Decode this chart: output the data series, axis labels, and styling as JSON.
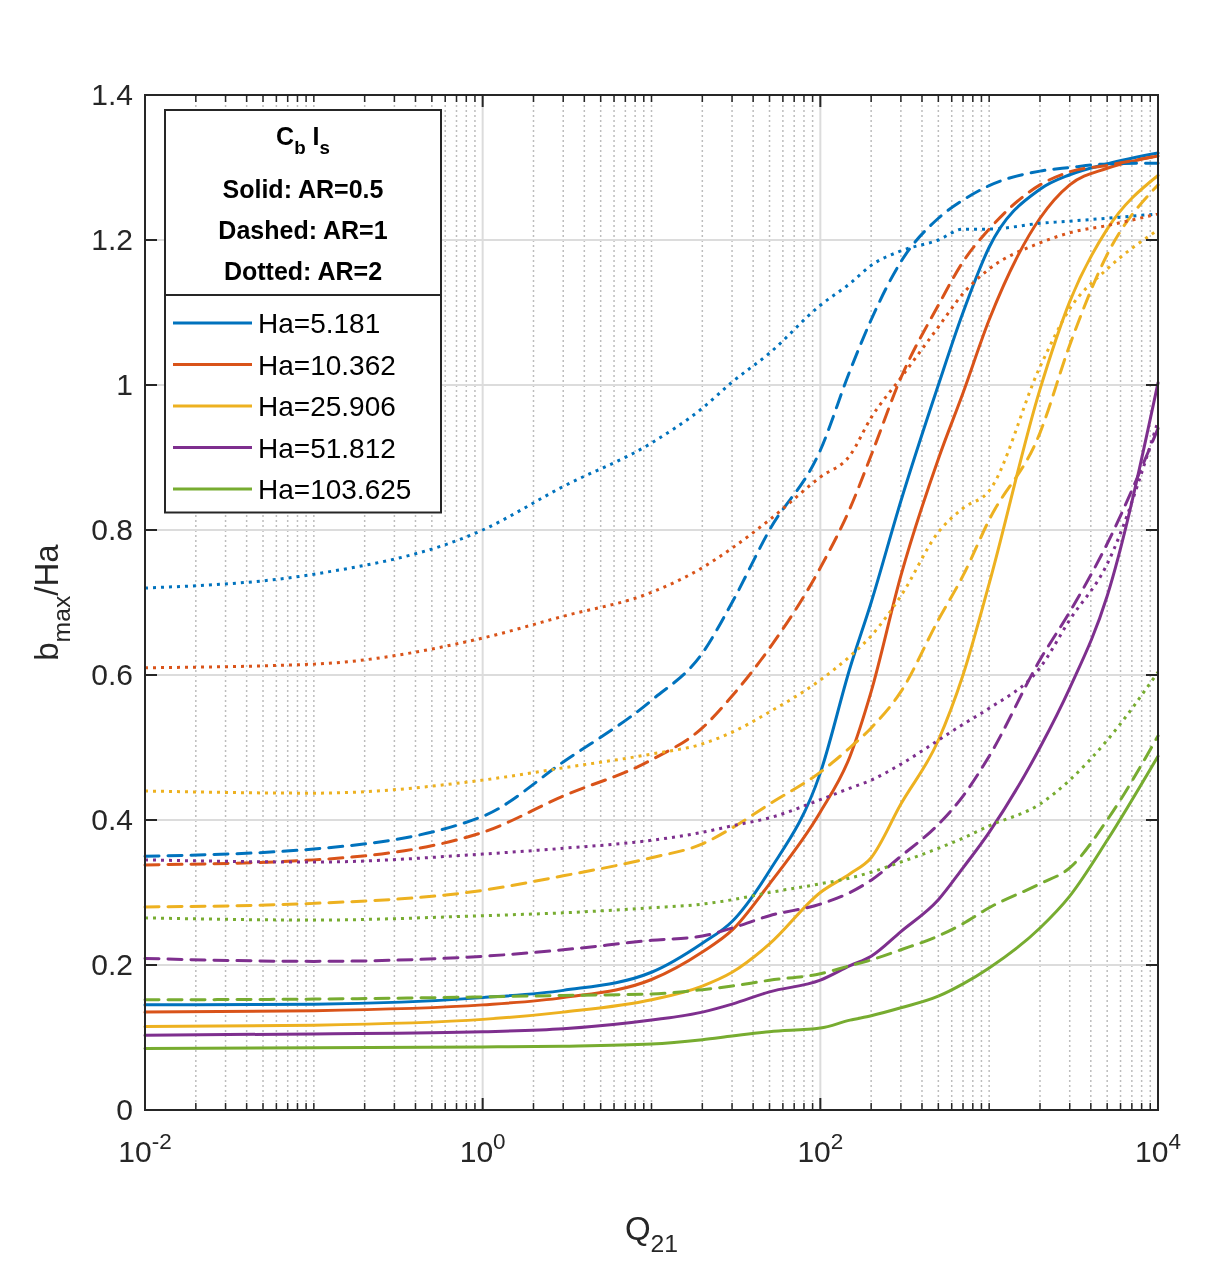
{
  "chart_data": {
    "type": "line",
    "xlabel": "Q$_{21}$",
    "ylabel": "b$_{max}$/Ha",
    "legend_title": "C$_{b}$ I$_{s}$",
    "annotations": [
      "Solid: AR=0.5",
      "Dashed: AR=1",
      "Dotted: AR=2"
    ],
    "log": "x",
    "grid": true,
    "legend": "top left",
    "xlim": [
      0.01,
      10000
    ],
    "xticks": [
      {
        "value": 0.01,
        "label": "10$^{-2}$"
      },
      {
        "value": 1,
        "label": "10$^{0}$"
      },
      {
        "value": 100,
        "label": "10$^{2}$"
      },
      {
        "value": 10000,
        "label": "10$^{4}$"
      }
    ],
    "ylim": [
      0,
      1.4
    ],
    "yticks": [
      0,
      0.2,
      0.4,
      0.6,
      0.8,
      1,
      1.2,
      1.4
    ],
    "x": [
      0.01,
      0.1,
      1,
      3,
      10,
      20,
      30,
      50,
      100,
      150,
      200,
      300,
      500,
      700,
      1000,
      2000,
      3000,
      5000,
      10000
    ],
    "series": [
      {
        "name": "Ha=5.181",
        "color": "#0072bd",
        "line_style": "solid",
        "values": [
          0.145,
          0.146,
          0.155,
          0.165,
          0.19,
          0.23,
          0.26,
          0.33,
          0.465,
          0.61,
          0.7,
          0.84,
          1.0,
          1.1,
          1.19,
          1.27,
          1.29,
          1.305,
          1.32
        ]
      },
      {
        "name": "Ha=10.362",
        "color": "#d95319",
        "line_style": "solid",
        "values": [
          0.135,
          0.137,
          0.145,
          0.155,
          0.18,
          0.218,
          0.248,
          0.312,
          0.411,
          0.488,
          0.577,
          0.737,
          0.898,
          0.989,
          1.09,
          1.23,
          1.276,
          1.299,
          1.316
        ]
      },
      {
        "name": "Ha=25.906",
        "color": "#edb120",
        "line_style": "solid",
        "values": [
          0.115,
          0.117,
          0.125,
          0.135,
          0.152,
          0.171,
          0.19,
          0.229,
          0.3,
          0.326,
          0.348,
          0.422,
          0.51,
          0.6,
          0.726,
          0.994,
          1.115,
          1.215,
          1.289
        ]
      },
      {
        "name": "Ha=51.812",
        "color": "#7e2f8e",
        "line_style": "solid",
        "values": [
          0.103,
          0.105,
          0.108,
          0.112,
          0.124,
          0.135,
          0.146,
          0.163,
          0.179,
          0.199,
          0.212,
          0.246,
          0.29,
          0.334,
          0.383,
          0.5,
          0.582,
          0.709,
          1.003
        ]
      },
      {
        "name": "Ha=103.625",
        "color": "#77ac30",
        "line_style": "solid",
        "values": [
          0.085,
          0.086,
          0.087,
          0.088,
          0.091,
          0.097,
          0.102,
          0.108,
          0.113,
          0.124,
          0.13,
          0.141,
          0.157,
          0.174,
          0.196,
          0.251,
          0.295,
          0.372,
          0.488
        ]
      },
      {
        "color": "#0072bd",
        "line_style": "dashed",
        "values": [
          0.35,
          0.36,
          0.405,
          0.48,
          0.565,
          0.63,
          0.7,
          0.8,
          0.91,
          1.02,
          1.09,
          1.17,
          1.23,
          1.255,
          1.275,
          1.295,
          1.3,
          1.305,
          1.306
        ]
      },
      {
        "color": "#d95319",
        "line_style": "dashed",
        "values": [
          0.338,
          0.345,
          0.383,
          0.433,
          0.483,
          0.527,
          0.571,
          0.637,
          0.748,
          0.83,
          0.903,
          1.01,
          1.11,
          1.17,
          1.215,
          1.276,
          1.294,
          1.303,
          1.316
        ]
      },
      {
        "color": "#edb120",
        "line_style": "dashed",
        "values": [
          0.28,
          0.285,
          0.303,
          0.323,
          0.348,
          0.367,
          0.389,
          0.422,
          0.466,
          0.5,
          0.527,
          0.577,
          0.676,
          0.737,
          0.814,
          0.934,
          1.055,
          1.18,
          1.276
        ]
      },
      {
        "color": "#7e2f8e",
        "line_style": "dashed",
        "values": [
          0.209,
          0.205,
          0.212,
          0.221,
          0.234,
          0.24,
          0.251,
          0.268,
          0.284,
          0.3,
          0.317,
          0.35,
          0.394,
          0.433,
          0.488,
          0.621,
          0.687,
          0.781,
          0.94
        ]
      },
      {
        "color": "#77ac30",
        "line_style": "dashed",
        "values": [
          0.152,
          0.153,
          0.156,
          0.158,
          0.16,
          0.166,
          0.171,
          0.179,
          0.188,
          0.199,
          0.207,
          0.221,
          0.24,
          0.257,
          0.279,
          0.312,
          0.334,
          0.4,
          0.516
        ]
      },
      {
        "color": "#0072bd",
        "line_style": "dotted",
        "values": [
          0.72,
          0.739,
          0.8,
          0.86,
          0.92,
          0.968,
          1.004,
          1.044,
          1.11,
          1.14,
          1.165,
          1.185,
          1.2,
          1.215,
          1.215,
          1.223,
          1.226,
          1.23,
          1.236
        ]
      },
      {
        "color": "#d95319",
        "line_style": "dotted",
        "values": [
          0.61,
          0.615,
          0.651,
          0.681,
          0.714,
          0.748,
          0.775,
          0.814,
          0.873,
          0.903,
          0.955,
          1.01,
          1.08,
          1.126,
          1.16,
          1.196,
          1.21,
          1.22,
          1.236
        ]
      },
      {
        "color": "#edb120",
        "line_style": "dotted",
        "values": [
          0.44,
          0.437,
          0.455,
          0.472,
          0.491,
          0.505,
          0.521,
          0.549,
          0.593,
          0.626,
          0.654,
          0.709,
          0.797,
          0.83,
          0.854,
          1.025,
          1.105,
          1.16,
          1.214
        ]
      },
      {
        "color": "#7e2f8e",
        "line_style": "dotted",
        "values": [
          0.345,
          0.342,
          0.353,
          0.361,
          0.372,
          0.383,
          0.392,
          0.403,
          0.428,
          0.444,
          0.455,
          0.477,
          0.51,
          0.532,
          0.554,
          0.61,
          0.676,
          0.753,
          0.95
        ]
      },
      {
        "color": "#77ac30",
        "line_style": "dotted",
        "values": [
          0.265,
          0.262,
          0.268,
          0.272,
          0.279,
          0.284,
          0.29,
          0.3,
          0.312,
          0.32,
          0.328,
          0.342,
          0.361,
          0.375,
          0.392,
          0.422,
          0.455,
          0.51,
          0.604
        ]
      }
    ]
  }
}
